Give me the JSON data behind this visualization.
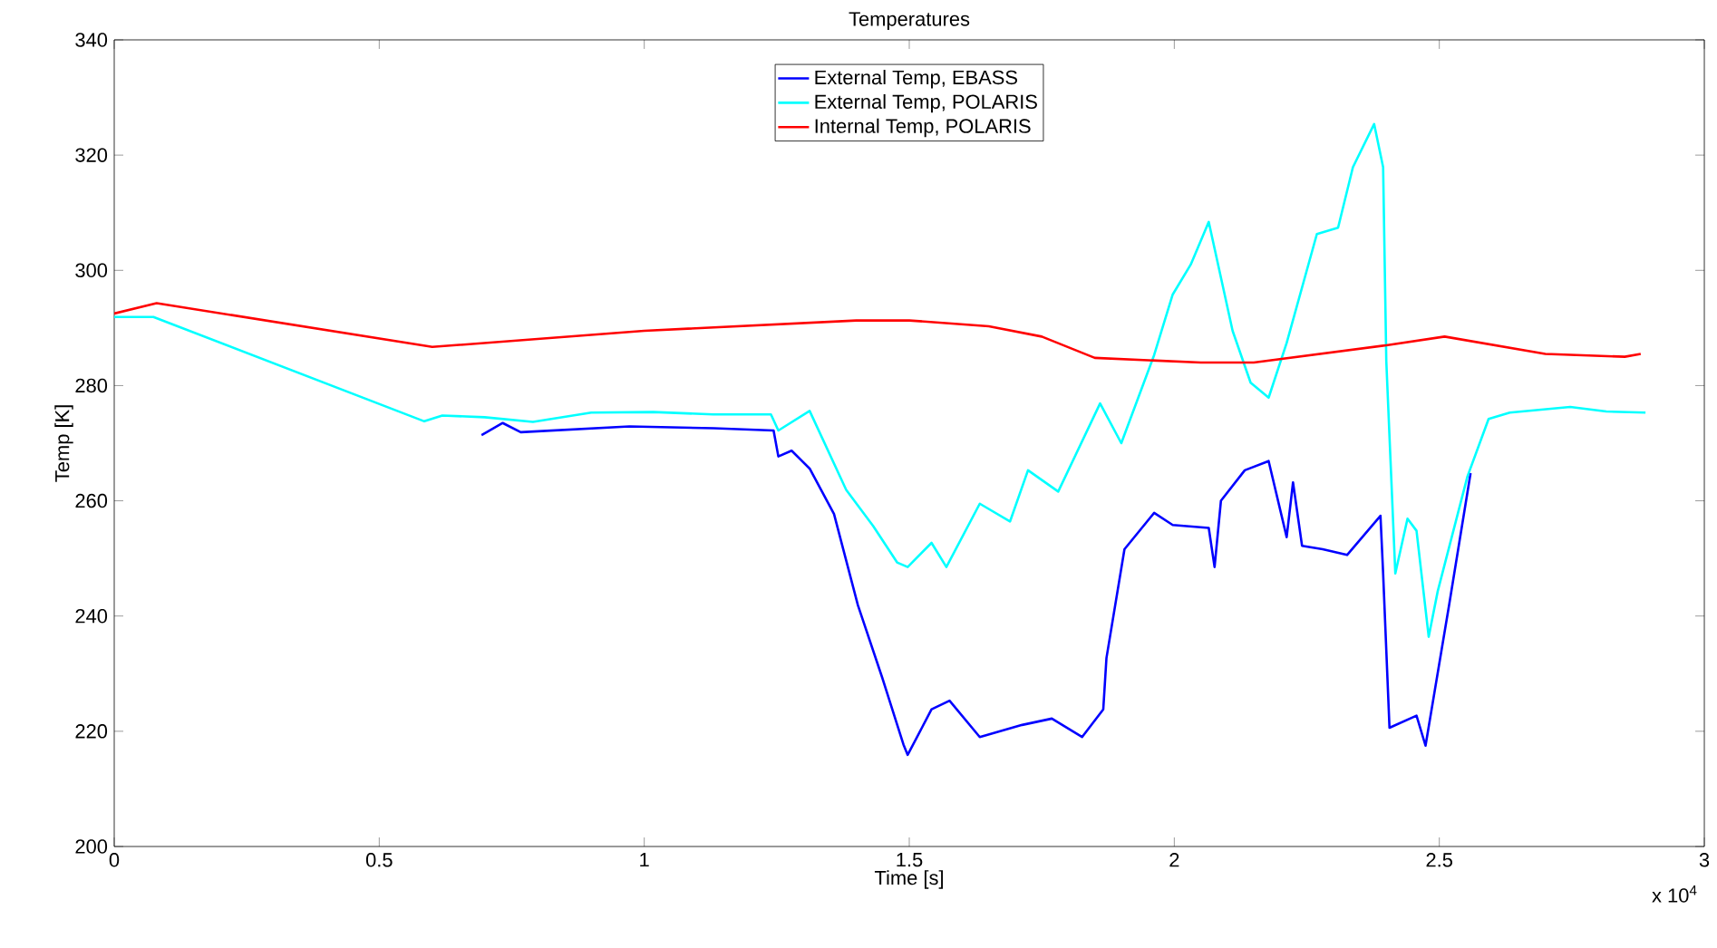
{
  "chart_data": {
    "type": "line",
    "title": "Temperatures",
    "xlabel": "Time [s]",
    "ylabel": "Temp [K]",
    "annotations": [
      "x 10$^{4}$"
    ],
    "xlim": [
      0,
      3
    ],
    "ylim": [
      200,
      340
    ],
    "xticks": [
      0,
      0.5,
      1,
      1.5,
      2,
      2.5,
      3
    ],
    "yticks": [
      200,
      220,
      240,
      260,
      280,
      300,
      320,
      340
    ],
    "legend": "top",
    "series": [
      {
        "name": "External Temp, EBASS",
        "color": "#0000ff",
        "x": [
          0.693,
          0.733,
          0.767,
          0.972,
          1.131,
          1.244,
          1.253,
          1.278,
          1.312,
          1.358,
          1.403,
          1.449,
          1.489,
          1.497,
          1.542,
          1.576,
          1.633,
          1.713,
          1.769,
          1.826,
          1.866,
          1.872,
          1.906,
          1.962,
          1.997,
          2.065,
          2.076,
          2.088,
          2.133,
          2.178,
          2.212,
          2.224,
          2.241,
          2.28,
          2.326,
          2.389,
          2.394,
          2.406,
          2.457,
          2.474,
          2.519,
          2.559
        ],
        "values": [
          271.4,
          273.5,
          271.9,
          272.9,
          272.6,
          272.2,
          267.7,
          268.7,
          265.6,
          257.7,
          241.9,
          229.3,
          217.7,
          215.9,
          223.8,
          225.3,
          219,
          221.1,
          222.2,
          219,
          223.8,
          232.7,
          251.6,
          257.9,
          255.8,
          255.3,
          248.5,
          260,
          265.3,
          266.9,
          253.7,
          263.2,
          252.2,
          251.6,
          250.6,
          257.4,
          247.4,
          220.6,
          222.7,
          217.5,
          242.2,
          264.8
        ]
      },
      {
        "name": "External Temp, POLARIS",
        "color": "#00ffff",
        "x": [
          0,
          0.074,
          0.585,
          0.619,
          0.699,
          0.79,
          0.9,
          1.017,
          1.13,
          1.239,
          1.253,
          1.312,
          1.381,
          1.432,
          1.477,
          1.497,
          1.542,
          1.57,
          1.633,
          1.69,
          1.724,
          1.781,
          1.86,
          1.9,
          1.962,
          1.997,
          2.031,
          2.065,
          2.11,
          2.144,
          2.178,
          2.212,
          2.269,
          2.309,
          2.337,
          2.377,
          2.394,
          2.4,
          2.417,
          2.44,
          2.457,
          2.48,
          2.497,
          2.553,
          2.593,
          2.633,
          2.747,
          2.815,
          2.889
        ],
        "values": [
          291.9,
          291.9,
          273.8,
          274.8,
          274.5,
          273.7,
          275.3,
          275.4,
          275,
          275,
          272.2,
          275.6,
          261.9,
          255.6,
          249.3,
          248.5,
          252.7,
          248.5,
          259.5,
          256.4,
          265.3,
          261.6,
          276.9,
          270,
          285.3,
          295.8,
          301,
          308.4,
          289.5,
          280.5,
          277.9,
          287.4,
          306.3,
          307.4,
          317.9,
          325.4,
          317.9,
          284.2,
          247.4,
          256.9,
          254.8,
          236.4,
          244.3,
          264.2,
          274.2,
          275.3,
          276.3,
          275.5,
          275.3
        ]
      },
      {
        "name": "Internal Temp, POLARIS",
        "color": "#ff0000",
        "x": [
          0,
          0.08,
          0.6,
          1.0,
          1.4,
          1.5,
          1.65,
          1.75,
          1.85,
          2.05,
          2.15,
          2.4,
          2.51,
          2.7,
          2.85,
          2.88
        ],
        "values": [
          292.5,
          294.3,
          286.7,
          289.5,
          291.3,
          291.3,
          290.3,
          288.5,
          284.8,
          284,
          284,
          287,
          288.5,
          285.5,
          285,
          285.5
        ]
      }
    ]
  }
}
